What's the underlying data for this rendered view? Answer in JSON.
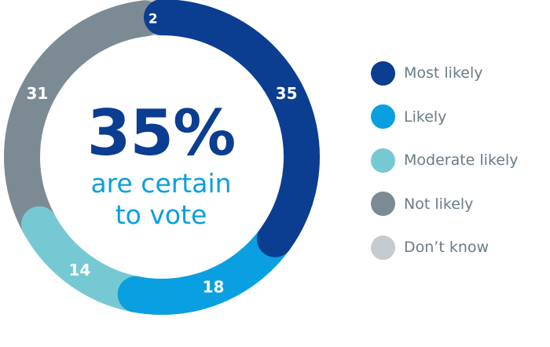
{
  "chart_data": {
    "type": "donut",
    "series": [
      {
        "name": "Most likely",
        "value": 35,
        "color": "#0b3d91"
      },
      {
        "name": "Likely",
        "value": 18,
        "color": "#0a9fe0"
      },
      {
        "name": "Moderate likely",
        "value": 14,
        "color": "#76c9d2"
      },
      {
        "name": "Not likely",
        "value": 31,
        "color": "#7c8a94"
      },
      {
        "name": "Don’t know",
        "value": 2,
        "color": "#c4ccd0"
      }
    ],
    "legend_position": "right"
  },
  "center_text": {
    "headline": "35%",
    "line1": "are certain",
    "line2": "to vote"
  }
}
